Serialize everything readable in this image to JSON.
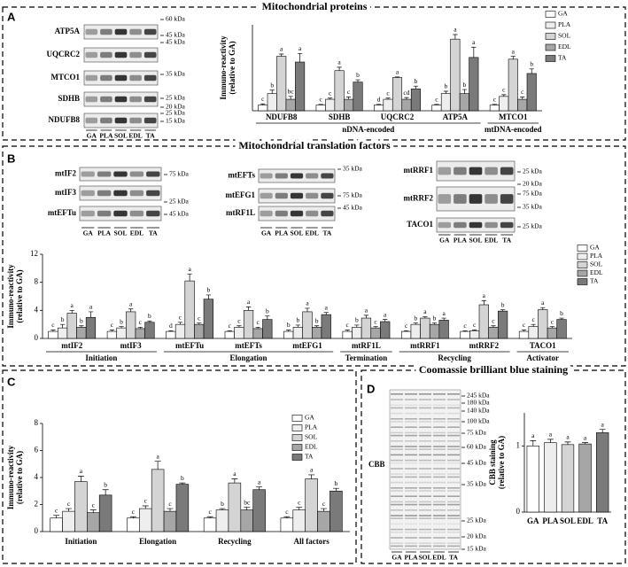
{
  "panels": {
    "A": {
      "letter": "A",
      "title": "Mitochondrial proteins",
      "blot_labels": [
        "ATP5A",
        "UQCRC2",
        "MTCO1",
        "SDHB",
        "NDUFB8"
      ],
      "markers": [
        "60 kDa",
        "45 kDa",
        "45 kDa",
        "35 kDa",
        "25 kDa",
        "20 kDa",
        "25 kDa",
        "15 kDa"
      ],
      "lanes": [
        "GA",
        "PLA",
        "SOL",
        "EDL",
        "TA"
      ]
    },
    "B": {
      "letter": "B",
      "title": "Mitochondrial translation factors",
      "blots": [
        {
          "labels": [
            "mtIF2",
            "mtIF3",
            "mtEFTu"
          ],
          "markers": [
            "75 kDa",
            "25 kDa",
            "45 kDa"
          ]
        },
        {
          "labels": [
            "mtEFTs",
            "mtEFG1",
            "mtRF1L"
          ],
          "markers": [
            "35 kDa",
            "75 kDa",
            "45 kDa"
          ]
        },
        {
          "labels": [
            "mtRRF1",
            "mtRRF2",
            "TACO1"
          ],
          "markers": [
            "25 kDa",
            "20 kDa",
            "75 kDa",
            "35 kDa",
            "25 kDa"
          ]
        }
      ],
      "lanes": [
        "GA",
        "PLA",
        "SOL",
        "EDL",
        "TA"
      ]
    },
    "C": {
      "letter": "C"
    },
    "D": {
      "letter": "D",
      "title": "Coomassie brilliant blue staining",
      "gel_label": "CBB",
      "markers": [
        "245 kDa",
        "180 kDa",
        "140 kDa",
        "100 kDa",
        "75 kDa",
        "60 kDa",
        "45 kDa",
        "35 kDa",
        "25 kDa",
        "20 kDa",
        "15 kDa"
      ],
      "lanes": [
        "GA",
        "PLA",
        "SOL",
        "EDL",
        "TA"
      ]
    }
  },
  "chart_data": [
    {
      "type": "bar",
      "ylabel": [
        "Immuno-reactivity",
        "(relative to GA)"
      ],
      "ylim": [
        0,
        15
      ],
      "groups": [
        {
          "name": "nDNA-encoded",
          "categories": [
            "NDUFB8",
            "SDHB",
            "UQCRC2",
            "ATP5A"
          ]
        },
        {
          "name": "mtDNA-encoded",
          "categories": [
            "MTCO1"
          ]
        }
      ],
      "series": [
        {
          "name": "GA",
          "color": "#ffffff",
          "values": [
            1,
            1,
            1,
            1,
            1
          ],
          "errors": [
            0.2,
            0.1,
            0.1,
            0.1,
            0.1
          ],
          "letters": [
            "c",
            "c",
            "d",
            "c",
            "c"
          ]
        },
        {
          "name": "PLA",
          "color": "#eeeeee",
          "values": [
            3,
            2,
            2,
            3,
            2.5
          ],
          "errors": [
            0.6,
            0.2,
            0.2,
            0.4,
            0.3
          ],
          "letters": [
            "b",
            "c",
            "c",
            "b",
            "c"
          ]
        },
        {
          "name": "SOL",
          "color": "#d4d4d4",
          "values": [
            9.5,
            7,
            5.8,
            12.5,
            9
          ],
          "errors": [
            0.4,
            0.6,
            0.1,
            0.8,
            0.5
          ],
          "letters": [
            "a",
            "a",
            "a",
            "a",
            "a"
          ]
        },
        {
          "name": "EDL",
          "color": "#a6a6a6",
          "values": [
            2,
            2,
            2,
            3,
            2
          ],
          "errors": [
            0.5,
            0.4,
            0.3,
            0.7,
            0.4
          ],
          "letters": [
            "bc",
            "c",
            "cd",
            "b",
            "c"
          ]
        },
        {
          "name": "TA",
          "color": "#7a7a7a",
          "values": [
            8.5,
            5,
            3.8,
            9.3,
            6.5
          ],
          "errors": [
            1.5,
            0.4,
            0.5,
            1.8,
            0.8
          ],
          "letters": [
            "a",
            "b",
            "b",
            "a",
            "b"
          ]
        }
      ]
    },
    {
      "type": "bar",
      "ylabel": [
        "Immuno-reactivity",
        "(relative to GA)"
      ],
      "ylim": [
        0,
        12
      ],
      "yticks": [
        0,
        4,
        8,
        12
      ],
      "groups": [
        {
          "name": "Initiation",
          "categories": [
            "mtIF2",
            "mtIF3"
          ]
        },
        {
          "name": "Elongation",
          "categories": [
            "mtEFTu",
            "mtEFTs",
            "mtEFG1"
          ]
        },
        {
          "name": "Termination",
          "categories": [
            "mtRF1L"
          ]
        },
        {
          "name": "Recycling",
          "categories": [
            "mtRRF1",
            "mtRRF2"
          ]
        },
        {
          "name": "Activator",
          "categories": [
            "TACO1"
          ]
        }
      ],
      "series": [
        {
          "name": "GA",
          "color": "#ffffff",
          "values": [
            1,
            1,
            1,
            1,
            1,
            1,
            1,
            1,
            1
          ],
          "errors": [
            0.2,
            0.2,
            0.1,
            0.1,
            0.2,
            0.2,
            0.1,
            0.1,
            0.2
          ],
          "letters": [
            "c",
            "c",
            "d",
            "c",
            "b",
            "c",
            "c",
            "c",
            "c"
          ]
        },
        {
          "name": "PLA",
          "color": "#eeeeee",
          "values": [
            1.5,
            1.5,
            2,
            1.6,
            1.6,
            1.6,
            2,
            1.1,
            1.7
          ],
          "errors": [
            0.5,
            0.2,
            0.3,
            0.2,
            0.3,
            0.3,
            0.2,
            0.1,
            0.3
          ],
          "letters": [
            "b",
            "b",
            "c",
            "c",
            "b",
            "b",
            "b",
            "c",
            "c"
          ]
        },
        {
          "name": "SOL",
          "color": "#d4d4d4",
          "values": [
            3.6,
            3.8,
            8.2,
            4,
            3.8,
            2.9,
            2.9,
            4.8,
            4.1
          ],
          "errors": [
            0.4,
            0.4,
            1,
            0.5,
            0.5,
            0.4,
            0.2,
            0.6,
            0.3
          ],
          "letters": [
            "a",
            "a",
            "a",
            "a",
            "a",
            "a",
            "a",
            "a",
            "a"
          ]
        },
        {
          "name": "EDL",
          "color": "#a6a6a6",
          "values": [
            1.6,
            1.4,
            2,
            1.4,
            1.6,
            1.5,
            2,
            1.6,
            1.5
          ],
          "errors": [
            0.2,
            0.2,
            0.2,
            0.2,
            0.2,
            0.2,
            0.2,
            0.2,
            0.2
          ],
          "letters": [
            "b",
            "c",
            "c",
            "c",
            "b",
            "c",
            "b",
            "c",
            "c"
          ]
        },
        {
          "name": "TA",
          "color": "#7a7a7a",
          "values": [
            3,
            2.3,
            5.6,
            2.7,
            3.4,
            2.4,
            2.6,
            3.9,
            2.7
          ],
          "errors": [
            0.8,
            0.2,
            0.6,
            0.5,
            0.3,
            0.3,
            0.3,
            0.2,
            0.2
          ],
          "letters": [
            "a",
            "b",
            "b",
            "b",
            "a",
            "a",
            "a",
            "b",
            "b"
          ]
        }
      ]
    },
    {
      "type": "bar",
      "ylabel": [
        "Immuno-reactivity",
        "(relative to GA)"
      ],
      "ylim": [
        0,
        8
      ],
      "yticks": [
        0,
        2,
        4,
        6,
        8
      ],
      "categories": [
        "Initiation",
        "Elongation",
        "Recycling",
        "All factors"
      ],
      "series": [
        {
          "name": "GA",
          "color": "#ffffff",
          "values": [
            1,
            1,
            1,
            1
          ],
          "errors": [
            0.2,
            0.1,
            0.1,
            0.1
          ],
          "letters": [
            "c",
            "c",
            "c",
            "c"
          ]
        },
        {
          "name": "PLA",
          "color": "#eeeeee",
          "values": [
            1.5,
            1.7,
            1.6,
            1.6
          ],
          "errors": [
            0.2,
            0.2,
            0.1,
            0.2
          ],
          "letters": [
            "c",
            "c",
            "b",
            "c"
          ]
        },
        {
          "name": "SOL",
          "color": "#d4d4d4",
          "values": [
            3.7,
            4.6,
            3.6,
            3.9
          ],
          "errors": [
            0.4,
            0.6,
            0.3,
            0.3
          ],
          "letters": [
            "a",
            "a",
            "a",
            "a"
          ]
        },
        {
          "name": "EDL",
          "color": "#a6a6a6",
          "values": [
            1.4,
            1.5,
            1.6,
            1.5
          ],
          "errors": [
            0.2,
            0.2,
            0.2,
            0.2
          ],
          "letters": [
            "c",
            "c",
            "bc",
            "c"
          ]
        },
        {
          "name": "TA",
          "color": "#7a7a7a",
          "values": [
            2.7,
            3.5,
            3.1,
            3
          ],
          "errors": [
            0.4,
            0.1,
            0.2,
            0.2
          ],
          "letters": [
            "b",
            "b",
            "a",
            "b"
          ]
        }
      ]
    },
    {
      "type": "bar",
      "ylabel": [
        "CBB staining",
        "(relative to GA)"
      ],
      "ylim": [
        0,
        1.5
      ],
      "yticks": [
        0,
        1
      ],
      "categories": [
        "GA",
        "PLA",
        "SOL",
        "EDL",
        "TA"
      ],
      "values": [
        1,
        1.05,
        1.02,
        1.03,
        1.2
      ],
      "errors": [
        0.08,
        0.05,
        0.04,
        0.02,
        0.05
      ],
      "letters": [
        "a",
        "a",
        "a",
        "a",
        "a"
      ],
      "colors": [
        "#ffffff",
        "#eeeeee",
        "#d4d4d4",
        "#a6a6a6",
        "#7a7a7a"
      ]
    }
  ]
}
